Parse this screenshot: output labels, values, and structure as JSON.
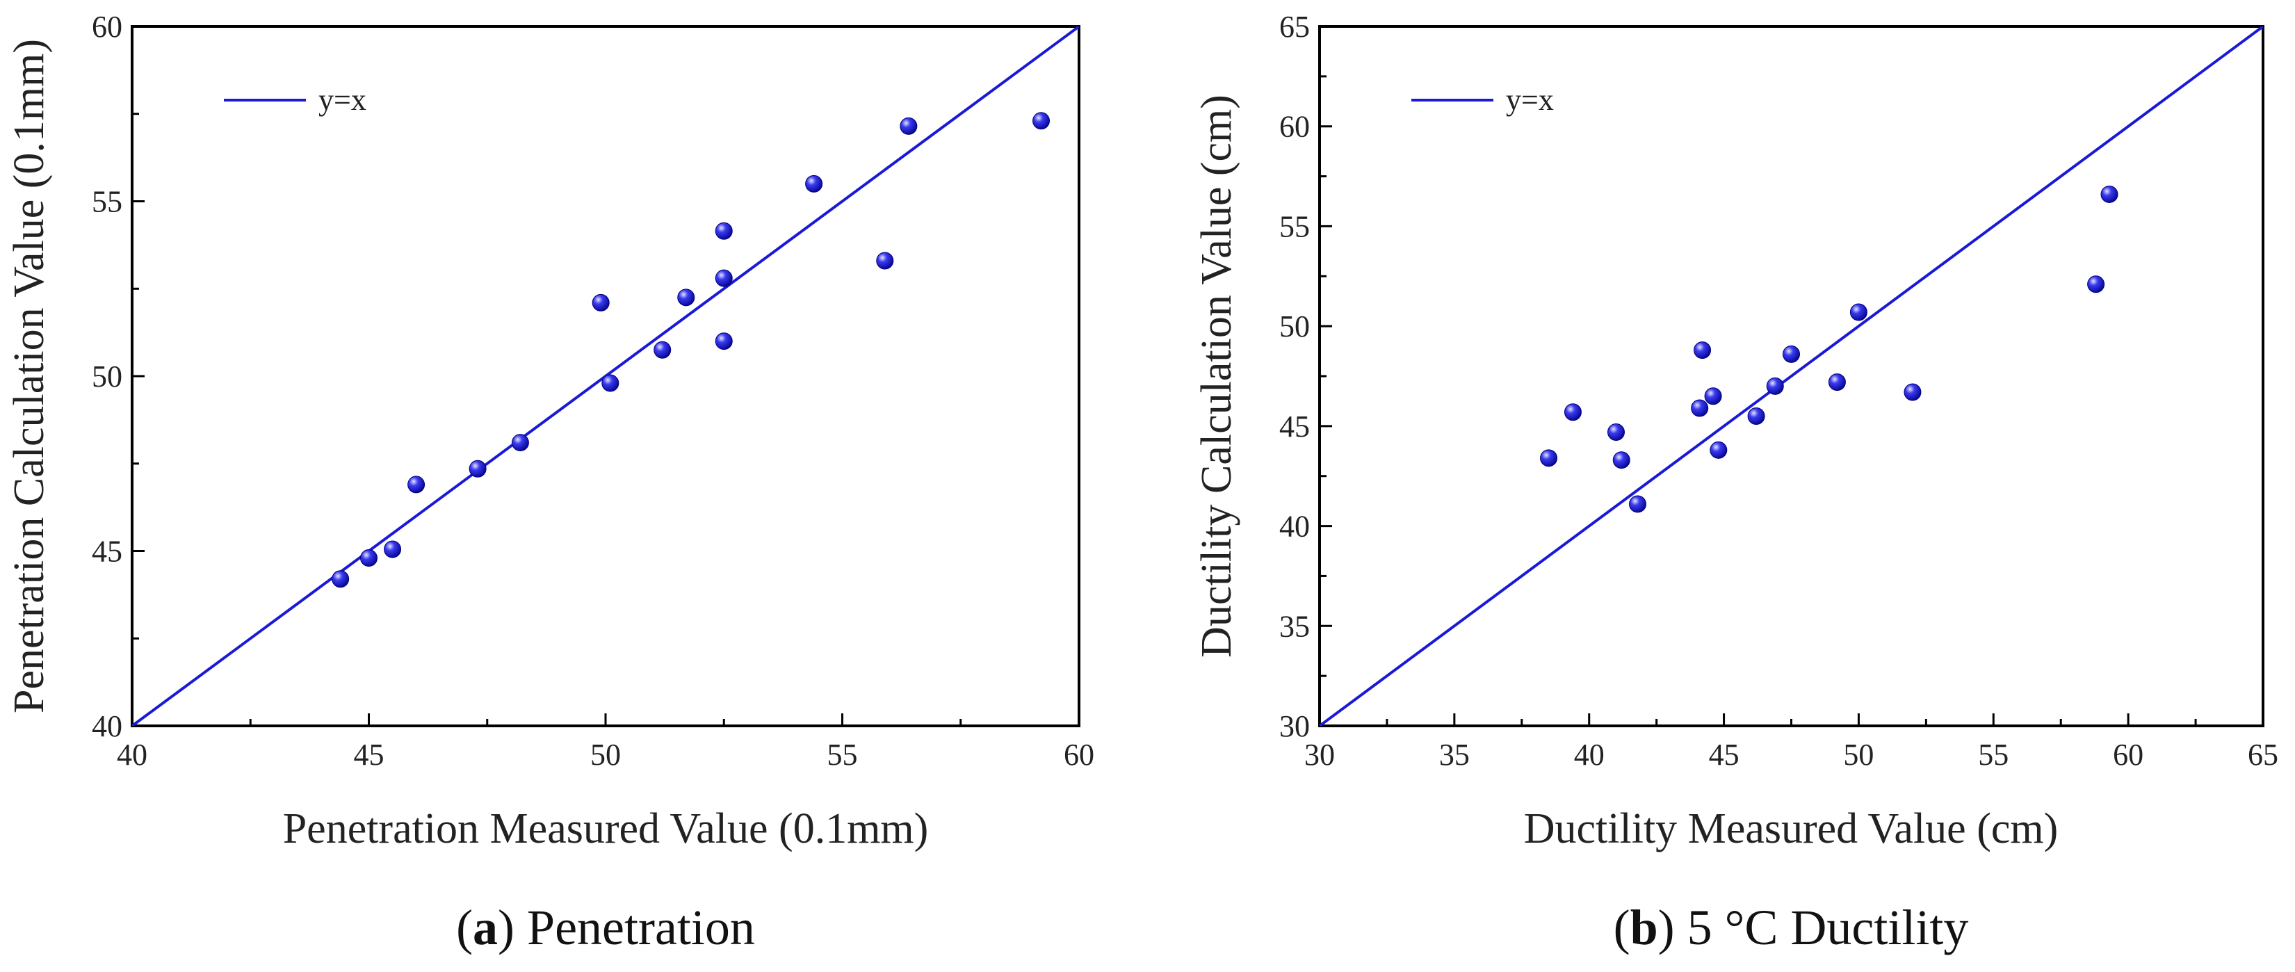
{
  "chart_data": [
    {
      "type": "scatter",
      "title": "",
      "xlabel": "Penetration Measured Value (0.1mm)",
      "ylabel": "Penetration Calculation Value (0.1mm)",
      "xlim": [
        40,
        60
      ],
      "ylim": [
        40,
        60
      ],
      "xticks": [
        40,
        45,
        50,
        55,
        60
      ],
      "yticks": [
        40,
        45,
        50,
        55,
        60
      ],
      "x_minor_step": 2.5,
      "y_minor_step": 2.5,
      "grid": false,
      "legend": {
        "position": "top-left",
        "entries": [
          "y=x"
        ]
      },
      "reference_line": {
        "name": "y=x",
        "color": "#1a1ad6",
        "from": [
          40,
          40
        ],
        "to": [
          60,
          60
        ]
      },
      "marker_color": "#1414e6",
      "series": [
        {
          "name": "Penetration",
          "points": [
            [
              44.4,
              44.2
            ],
            [
              45.0,
              44.8
            ],
            [
              45.5,
              45.05
            ],
            [
              46.0,
              46.9
            ],
            [
              47.3,
              47.35
            ],
            [
              48.2,
              48.1
            ],
            [
              49.9,
              52.1
            ],
            [
              50.1,
              49.8
            ],
            [
              51.2,
              50.75
            ],
            [
              51.7,
              52.25
            ],
            [
              52.5,
              54.15
            ],
            [
              52.5,
              52.8
            ],
            [
              52.5,
              51.0
            ],
            [
              54.4,
              55.5
            ],
            [
              55.9,
              53.3
            ],
            [
              56.4,
              57.15
            ],
            [
              59.2,
              57.3
            ]
          ]
        }
      ],
      "caption": {
        "letter": "a",
        "text": "Penetration"
      }
    },
    {
      "type": "scatter",
      "title": "",
      "xlabel": "Ductility Measured Value (cm)",
      "ylabel": "Ductility Calculation Value (cm)",
      "xlim": [
        30,
        65
      ],
      "ylim": [
        30,
        65
      ],
      "xticks": [
        30,
        35,
        40,
        45,
        50,
        55,
        60,
        65
      ],
      "yticks": [
        30,
        35,
        40,
        45,
        50,
        55,
        60,
        65
      ],
      "x_minor_step": 2.5,
      "y_minor_step": 2.5,
      "grid": false,
      "legend": {
        "position": "top-left",
        "entries": [
          "y=x"
        ]
      },
      "reference_line": {
        "name": "y=x",
        "color": "#1a1ad6",
        "from": [
          30,
          30
        ],
        "to": [
          65,
          65
        ]
      },
      "marker_color": "#1414e6",
      "series": [
        {
          "name": "5 °C Ductility",
          "points": [
            [
              38.5,
              43.4
            ],
            [
              39.4,
              45.7
            ],
            [
              41.0,
              44.7
            ],
            [
              41.2,
              43.3
            ],
            [
              41.8,
              41.1
            ],
            [
              44.1,
              45.9
            ],
            [
              44.2,
              48.8
            ],
            [
              44.6,
              46.5
            ],
            [
              44.8,
              43.8
            ],
            [
              46.2,
              45.5
            ],
            [
              46.9,
              47.0
            ],
            [
              47.5,
              48.6
            ],
            [
              49.2,
              47.2
            ],
            [
              50.0,
              50.7
            ],
            [
              52.0,
              46.7
            ],
            [
              58.8,
              52.1
            ],
            [
              59.3,
              56.6
            ]
          ]
        }
      ],
      "caption": {
        "letter": "b",
        "text": "5 °C Ductility"
      }
    }
  ]
}
